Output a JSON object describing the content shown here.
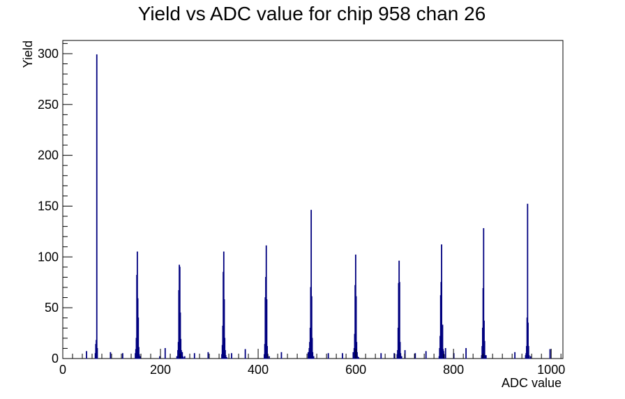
{
  "chart_data": {
    "type": "bar",
    "title": "Yield vs ADC value for chip 958 chan 26",
    "xlabel": "ADC value",
    "ylabel": "Yield",
    "xlim": [
      0,
      1024
    ],
    "ylim": [
      0,
      313
    ],
    "x_ticks": [
      0,
      200,
      400,
      600,
      800,
      1000
    ],
    "y_ticks": [
      0,
      50,
      100,
      150,
      200,
      250,
      300
    ],
    "grid": false,
    "legend": "none",
    "color": "#00007f",
    "x": [
      48,
      66,
      67,
      68,
      69,
      70,
      97,
      122,
      148,
      149,
      150,
      151,
      152,
      153,
      154,
      155,
      156,
      158,
      198,
      209,
      233,
      235,
      236,
      237,
      238,
      239,
      240,
      241,
      242,
      243,
      244,
      245,
      246,
      249,
      269,
      297,
      325,
      326,
      327,
      328,
      329,
      330,
      331,
      332,
      333,
      335,
      345,
      373,
      412,
      413,
      414,
      415,
      416,
      417,
      418,
      419,
      422,
      447,
      502,
      504,
      505,
      506,
      507,
      508,
      509,
      510,
      511,
      513,
      543,
      572,
      594,
      596,
      597,
      598,
      599,
      600,
      601,
      602,
      603,
      605,
      651,
      678,
      684,
      685,
      686,
      687,
      688,
      689,
      690,
      691,
      693,
      700,
      721,
      743,
      770,
      771,
      772,
      773,
      774,
      775,
      776,
      777,
      778,
      779,
      780,
      783,
      800,
      825,
      857,
      858,
      859,
      860,
      861,
      862,
      863,
      864,
      866,
      925,
      947,
      948,
      949,
      950,
      951,
      952,
      953,
      954,
      957,
      997
    ],
    "values": [
      7,
      5,
      14,
      18,
      299,
      10,
      6,
      5,
      5,
      9,
      20,
      82,
      105,
      59,
      40,
      11,
      4,
      2,
      2,
      10,
      2,
      8,
      16,
      67,
      92,
      90,
      45,
      19,
      8,
      6,
      6,
      2,
      1,
      2,
      5,
      6,
      4,
      13,
      32,
      85,
      105,
      58,
      20,
      8,
      3,
      1,
      5,
      9,
      4,
      14,
      60,
      80,
      111,
      58,
      12,
      3,
      2,
      6,
      6,
      10,
      16,
      30,
      70,
      146,
      61,
      20,
      6,
      2,
      5,
      5,
      6,
      10,
      24,
      72,
      102,
      61,
      16,
      6,
      2,
      1,
      5,
      5,
      4,
      8,
      30,
      74,
      96,
      75,
      16,
      5,
      2,
      8,
      5,
      7,
      2,
      10,
      22,
      62,
      75,
      112,
      23,
      33,
      9,
      7,
      4,
      10,
      5,
      10,
      3,
      12,
      30,
      69,
      128,
      37,
      17,
      3,
      3,
      6,
      3,
      5,
      12,
      40,
      152,
      35,
      12,
      3,
      2,
      9
    ]
  }
}
